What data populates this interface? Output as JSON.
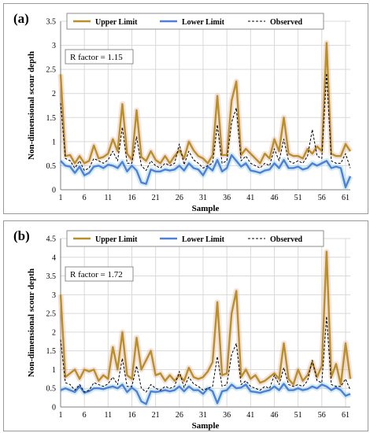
{
  "chart_data": [
    {
      "panel_label": "(a)",
      "type": "line",
      "xlabel": "Sample",
      "ylabel": "Non-dimensional  scour depth",
      "ylim": [
        0,
        3.5
      ],
      "yticks": [
        "0",
        "0.5",
        "1",
        "1.5",
        "2",
        "2.5",
        "3",
        "3.5"
      ],
      "xticks": [
        1,
        6,
        11,
        16,
        21,
        26,
        31,
        36,
        41,
        46,
        51,
        56,
        61
      ],
      "x": [
        1,
        2,
        3,
        4,
        5,
        6,
        7,
        8,
        9,
        10,
        11,
        12,
        13,
        14,
        15,
        16,
        17,
        18,
        19,
        20,
        21,
        22,
        23,
        24,
        25,
        26,
        27,
        28,
        29,
        30,
        31,
        32,
        33,
        34,
        35,
        36,
        37,
        38,
        39,
        40,
        41,
        42,
        43,
        44,
        45,
        46,
        47,
        48,
        49,
        50,
        51,
        52,
        53,
        54,
        55,
        56,
        57,
        58,
        59,
        60,
        61,
        62
      ],
      "grid": true,
      "legend_position": "top",
      "annotation": "R factor = 1.15",
      "series": [
        {
          "name": "Upper Limit",
          "color": "#b8902a",
          "style": "solid",
          "values": [
            2.4,
            0.7,
            0.72,
            0.55,
            0.7,
            0.55,
            0.6,
            0.92,
            0.65,
            0.68,
            0.75,
            1.05,
            0.8,
            1.78,
            0.75,
            0.62,
            1.65,
            0.68,
            0.6,
            0.8,
            0.62,
            0.55,
            0.7,
            0.55,
            0.7,
            0.82,
            0.65,
            1.0,
            0.82,
            0.7,
            0.65,
            0.55,
            0.72,
            1.95,
            0.72,
            0.72,
            1.85,
            2.25,
            0.72,
            0.85,
            0.75,
            0.65,
            0.55,
            0.75,
            0.65,
            1.05,
            0.8,
            1.5,
            0.75,
            0.7,
            0.7,
            0.65,
            0.85,
            0.75,
            0.9,
            0.8,
            3.05,
            0.75,
            0.7,
            0.7,
            0.95,
            0.8
          ]
        },
        {
          "name": "Lower Limit",
          "color": "#4f7fd6",
          "style": "solid",
          "values": [
            0.6,
            0.5,
            0.48,
            0.35,
            0.48,
            0.3,
            0.35,
            0.48,
            0.5,
            0.45,
            0.52,
            0.5,
            0.45,
            0.58,
            0.38,
            0.5,
            0.4,
            0.15,
            0.12,
            0.42,
            0.38,
            0.38,
            0.42,
            0.4,
            0.42,
            0.5,
            0.4,
            0.55,
            0.45,
            0.42,
            0.3,
            0.48,
            0.4,
            0.62,
            0.38,
            0.45,
            0.72,
            0.6,
            0.48,
            0.55,
            0.4,
            0.38,
            0.35,
            0.4,
            0.42,
            0.55,
            0.45,
            0.62,
            0.45,
            0.45,
            0.48,
            0.42,
            0.45,
            0.55,
            0.5,
            0.55,
            0.6,
            0.45,
            0.48,
            0.45,
            0.05,
            0.28
          ]
        },
        {
          "name": "Observed",
          "color": "#000000",
          "style": "dashed",
          "values": [
            1.8,
            0.65,
            0.6,
            0.45,
            0.6,
            0.4,
            0.45,
            0.65,
            0.6,
            0.55,
            0.62,
            0.8,
            0.6,
            1.3,
            0.55,
            0.55,
            1.1,
            0.5,
            0.4,
            0.6,
            0.5,
            0.45,
            0.55,
            0.5,
            0.55,
            0.95,
            0.52,
            0.8,
            0.62,
            0.55,
            0.45,
            0.5,
            0.55,
            1.35,
            0.55,
            0.6,
            1.4,
            1.7,
            0.6,
            0.7,
            0.55,
            0.5,
            0.45,
            0.55,
            0.5,
            0.85,
            0.6,
            1.05,
            0.6,
            0.55,
            0.6,
            0.55,
            0.7,
            1.25,
            0.7,
            0.65,
            2.42,
            0.6,
            0.55,
            0.55,
            0.75,
            0.45
          ]
        }
      ]
    },
    {
      "panel_label": "(b)",
      "type": "line",
      "xlabel": "Sample",
      "ylabel": "Non-dimensional  scour depth",
      "ylim": [
        0,
        4.5
      ],
      "yticks": [
        "0",
        "0.5",
        "1",
        "1.5",
        "2",
        "2.5",
        "3",
        "3.5",
        "4",
        "4.5"
      ],
      "xticks": [
        1,
        6,
        11,
        16,
        21,
        26,
        31,
        36,
        41,
        46,
        51,
        56,
        61
      ],
      "x": [
        1,
        2,
        3,
        4,
        5,
        6,
        7,
        8,
        9,
        10,
        11,
        12,
        13,
        14,
        15,
        16,
        17,
        18,
        19,
        20,
        21,
        22,
        23,
        24,
        25,
        26,
        27,
        28,
        29,
        30,
        31,
        32,
        33,
        34,
        35,
        36,
        37,
        38,
        39,
        40,
        41,
        42,
        43,
        44,
        45,
        46,
        47,
        48,
        49,
        50,
        51,
        52,
        53,
        54,
        55,
        56,
        57,
        58,
        59,
        60,
        61,
        62
      ],
      "grid": true,
      "legend_position": "top",
      "annotation": "R factor = 1.72",
      "series": [
        {
          "name": "Upper Limit",
          "color": "#b8902a",
          "style": "solid",
          "values": [
            3.0,
            0.8,
            0.9,
            1.0,
            0.75,
            1.0,
            0.95,
            1.0,
            0.7,
            0.85,
            0.75,
            1.6,
            1.0,
            2.0,
            0.85,
            0.75,
            1.85,
            1.0,
            1.25,
            1.5,
            0.85,
            0.9,
            0.7,
            0.85,
            0.7,
            0.85,
            0.7,
            1.05,
            0.8,
            0.75,
            0.8,
            0.95,
            1.2,
            2.8,
            0.85,
            0.9,
            2.5,
            3.1,
            0.8,
            1.0,
            0.75,
            0.85,
            0.65,
            0.7,
            0.8,
            0.9,
            0.75,
            1.7,
            0.75,
            0.6,
            1.0,
            0.7,
            0.85,
            1.2,
            0.8,
            1.1,
            4.15,
            0.8,
            1.15,
            0.6,
            1.7,
            0.75
          ]
        },
        {
          "name": "Lower Limit",
          "color": "#4f7fd6",
          "style": "solid",
          "values": [
            0.45,
            0.5,
            0.45,
            0.4,
            0.55,
            0.38,
            0.42,
            0.5,
            0.5,
            0.48,
            0.52,
            0.55,
            0.5,
            0.6,
            0.4,
            0.52,
            0.42,
            0.15,
            0.08,
            0.42,
            0.4,
            0.42,
            0.45,
            0.42,
            0.45,
            0.55,
            0.42,
            0.55,
            0.45,
            0.45,
            0.35,
            0.5,
            0.42,
            0.1,
            0.42,
            0.45,
            0.6,
            0.5,
            0.52,
            0.6,
            0.42,
            0.4,
            0.38,
            0.42,
            0.45,
            0.55,
            0.45,
            0.62,
            0.45,
            0.45,
            0.5,
            0.45,
            0.48,
            0.55,
            0.5,
            0.6,
            0.55,
            0.45,
            0.52,
            0.45,
            0.3,
            0.35
          ]
        },
        {
          "name": "Observed",
          "color": "#000000",
          "style": "dashed",
          "values": [
            1.8,
            0.65,
            0.6,
            0.45,
            0.6,
            0.4,
            0.45,
            0.65,
            0.6,
            0.55,
            0.62,
            0.8,
            0.6,
            1.3,
            0.55,
            0.55,
            1.1,
            0.5,
            0.4,
            0.6,
            0.5,
            0.45,
            0.55,
            0.5,
            0.55,
            0.95,
            0.52,
            0.8,
            0.62,
            0.55,
            0.45,
            0.5,
            0.55,
            1.35,
            0.55,
            0.6,
            1.4,
            1.7,
            0.6,
            0.7,
            0.55,
            0.5,
            0.45,
            0.55,
            0.5,
            0.85,
            0.6,
            1.05,
            0.6,
            0.55,
            0.6,
            0.55,
            0.7,
            1.25,
            0.7,
            0.65,
            2.42,
            0.6,
            0.55,
            0.55,
            0.75,
            0.45
          ]
        }
      ]
    }
  ]
}
